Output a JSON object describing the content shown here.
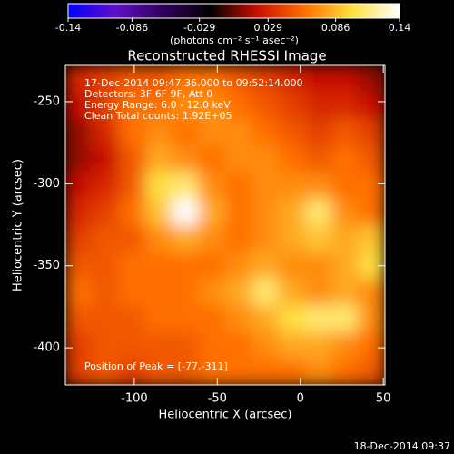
{
  "chart_data": {
    "type": "heatmap",
    "title": "Reconstructed RHESSI Image",
    "x_label": "Heliocentric X (arcsec)",
    "y_label": "Heliocentric Y (arcsec)",
    "colorbar_label": "(photons cm⁻² s⁻¹ asec⁻²)",
    "annotations": [
      "17-Dec-2014 09:47:36.000 to 09:52:14.000",
      "Detectors: 3F 6F 9F, Att 0",
      "Energy Range: 6.0 - 12.0 keV",
      "Clean    Total counts: 1.92E+05"
    ],
    "peak_label": "Position of Peak = [-77,-311]",
    "footer": "18-Dec-2014 09:37",
    "xlim": [
      -141.5,
      51
    ],
    "ylim": [
      -422.6,
      -227.9
    ],
    "xticks": [
      -100,
      -50,
      0,
      50
    ],
    "yticks": [
      -250,
      -300,
      -350,
      -400
    ],
    "clim": [
      -0.14,
      0.14
    ],
    "cticks": [
      -0.14,
      -0.086,
      -0.029,
      0.029,
      0.086,
      0.14
    ],
    "colormap": [
      "#0000ff",
      "#6010c8",
      "#30005a",
      "#000000",
      "#c81000",
      "#ff7000",
      "#ffe040",
      "#ffffff"
    ],
    "z": [
      [
        0.03,
        0.04,
        0.05,
        0.05,
        0.06,
        0.06,
        0.05,
        0.04,
        0.03,
        0.02,
        0.02,
        0.01
      ],
      [
        0.02,
        0.04,
        0.06,
        0.06,
        0.07,
        0.07,
        0.06,
        0.05,
        0.04,
        0.03,
        0.03,
        0.02
      ],
      [
        0.01,
        0.03,
        0.06,
        0.07,
        0.06,
        0.07,
        0.07,
        0.06,
        0.05,
        0.04,
        0.05,
        0.04
      ],
      [
        0.01,
        0.02,
        0.05,
        0.08,
        0.07,
        0.06,
        0.07,
        0.07,
        0.06,
        0.05,
        0.06,
        0.05
      ],
      [
        0.02,
        0.03,
        0.05,
        0.1,
        0.11,
        0.07,
        0.06,
        0.07,
        0.07,
        0.07,
        0.06,
        0.06
      ],
      [
        0.03,
        0.04,
        0.06,
        0.09,
        0.14,
        0.08,
        0.06,
        0.07,
        0.08,
        0.11,
        0.07,
        0.06
      ],
      [
        0.04,
        0.05,
        0.05,
        0.07,
        0.08,
        0.07,
        0.06,
        0.07,
        0.08,
        0.09,
        0.08,
        0.09
      ],
      [
        0.05,
        0.05,
        0.06,
        0.06,
        0.06,
        0.06,
        0.07,
        0.08,
        0.07,
        0.07,
        0.08,
        0.1
      ],
      [
        0.06,
        0.05,
        0.06,
        0.06,
        0.06,
        0.07,
        0.08,
        0.11,
        0.08,
        0.07,
        0.08,
        0.07
      ],
      [
        0.05,
        0.05,
        0.05,
        0.06,
        0.06,
        0.06,
        0.07,
        0.08,
        0.1,
        0.11,
        0.11,
        0.07
      ],
      [
        0.04,
        0.05,
        0.05,
        0.05,
        0.05,
        0.06,
        0.06,
        0.07,
        0.08,
        0.08,
        0.07,
        0.06
      ],
      [
        0.04,
        0.05,
        0.04,
        0.05,
        0.05,
        0.06,
        0.06,
        0.06,
        0.06,
        0.07,
        0.06,
        0.05
      ]
    ]
  }
}
